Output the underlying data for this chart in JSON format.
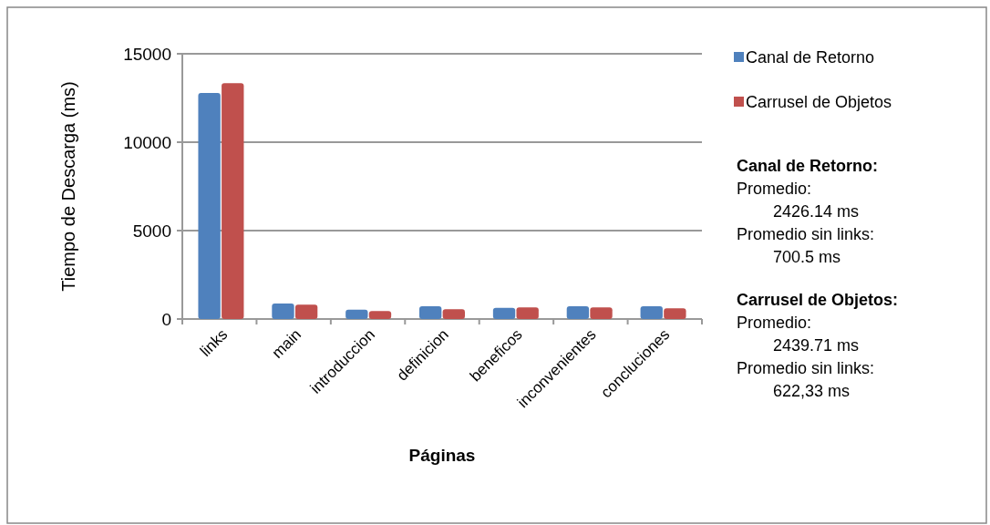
{
  "chart_data": {
    "type": "bar",
    "xlabel": "Páginas",
    "ylabel": "Tiempo de Descarga (ms)",
    "categories": [
      "links",
      "main",
      "introduccion",
      "definicion",
      "beneficos",
      "inconvenientes",
      "concluciones"
    ],
    "series": [
      {
        "name": "Canal de Retorno",
        "color": "#4f81bd",
        "values": [
          12780,
          880,
          530,
          720,
          630,
          720,
          720
        ]
      },
      {
        "name": "Carrusel de Objetos",
        "color": "#c0504d",
        "values": [
          13340,
          810,
          450,
          560,
          660,
          660,
          610
        ]
      }
    ],
    "ylim": [
      0,
      15000
    ],
    "yticks": [
      0,
      5000,
      10000,
      15000
    ],
    "grid": "y",
    "legend": "right",
    "annotations": [
      "Canal de Retorno:",
      "Promedio:",
      "2426.14 ms",
      "Promedio sin links:",
      "700.5 ms",
      "Carrusel de Objetos:",
      "Promedio:",
      "2439.71 ms",
      "Promedio sin links:",
      "622,33 ms"
    ]
  }
}
